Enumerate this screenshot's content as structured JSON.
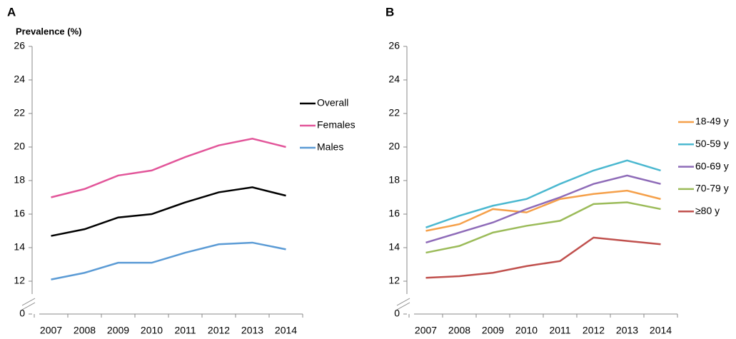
{
  "chart_data": [
    {
      "type": "line",
      "panel_label": "A",
      "y_label": "Prevalence (%)",
      "categories": [
        "2007",
        "2008",
        "2009",
        "2010",
        "2011",
        "2012",
        "2013",
        "2014"
      ],
      "ylim": [
        0,
        26
      ],
      "yticks": [
        0,
        12,
        14,
        16,
        18,
        20,
        22,
        24,
        26
      ],
      "axis_break": true,
      "series": [
        {
          "name": "Overall",
          "color": "#000000",
          "values": [
            14.7,
            15.1,
            15.8,
            16.0,
            16.7,
            17.3,
            17.6,
            17.1
          ]
        },
        {
          "name": "Females",
          "color": "#e2569a",
          "values": [
            17.0,
            17.5,
            18.3,
            18.6,
            19.4,
            20.1,
            20.5,
            20.0
          ]
        },
        {
          "name": "Males",
          "color": "#5b9bd5",
          "values": [
            12.1,
            12.5,
            13.1,
            13.1,
            13.7,
            14.2,
            14.3,
            13.9
          ]
        }
      ]
    },
    {
      "type": "line",
      "panel_label": "B",
      "categories": [
        "2007",
        "2008",
        "2009",
        "2010",
        "2011",
        "2012",
        "2013",
        "2014"
      ],
      "ylim": [
        0,
        26
      ],
      "yticks": [
        0,
        12,
        14,
        16,
        18,
        20,
        22,
        24,
        26
      ],
      "axis_break": true,
      "series": [
        {
          "name": "18-49 y",
          "color": "#f5a04a",
          "values": [
            15.0,
            15.4,
            16.3,
            16.1,
            16.9,
            17.2,
            17.4,
            16.9
          ]
        },
        {
          "name": "50-59 y",
          "color": "#4bb8d0",
          "values": [
            15.2,
            15.9,
            16.5,
            16.9,
            17.8,
            18.6,
            19.2,
            18.6
          ]
        },
        {
          "name": "60-69 y",
          "color": "#8e6bb8",
          "values": [
            14.3,
            14.9,
            15.5,
            16.3,
            17.0,
            17.8,
            18.3,
            17.8
          ]
        },
        {
          "name": "70-79 y",
          "color": "#9bbb59",
          "values": [
            13.7,
            14.1,
            14.9,
            15.3,
            15.6,
            16.6,
            16.7,
            16.3
          ]
        },
        {
          "name": "≥80 y",
          "color": "#c0504d",
          "values": [
            12.2,
            12.3,
            12.5,
            12.9,
            13.2,
            14.6,
            14.4,
            14.2
          ]
        }
      ]
    }
  ]
}
